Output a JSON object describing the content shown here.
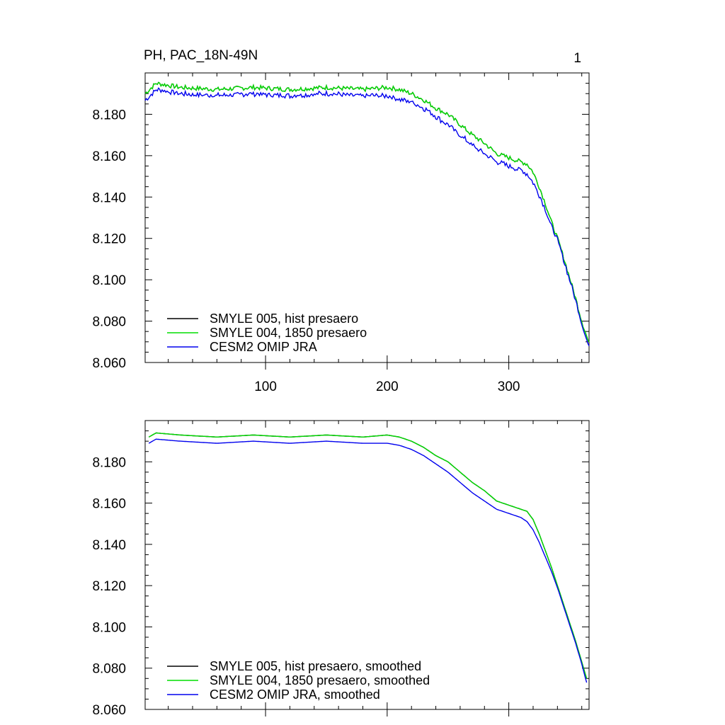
{
  "header": {
    "title": "PH, PAC_18N-49N",
    "corner_label": "1"
  },
  "chart_data": [
    {
      "type": "line",
      "xlim": [
        1,
        366
      ],
      "ylim": [
        8.06,
        8.2
      ],
      "x_ticks": [
        100,
        200,
        300
      ],
      "x_tick_labels": [
        "100",
        "200",
        "300"
      ],
      "y_ticks": [
        8.06,
        8.08,
        8.1,
        8.12,
        8.14,
        8.16,
        8.18
      ],
      "y_tick_labels": [
        "8.060",
        "8.080",
        "8.100",
        "8.120",
        "8.140",
        "8.160",
        "8.180"
      ],
      "legend_position": "bottom-left",
      "noisy": true,
      "series": [
        {
          "name": "SMYLE 005, hist presaero",
          "color": "#000000",
          "x": [
            1,
            10,
            30,
            60,
            90,
            120,
            150,
            180,
            200,
            210,
            220,
            230,
            240,
            250,
            260,
            270,
            280,
            290,
            300,
            310,
            315,
            320,
            325,
            330,
            335,
            340,
            345,
            350,
            355,
            360,
            366
          ],
          "y": [
            8.19,
            8.195,
            8.193,
            8.192,
            8.193,
            8.192,
            8.193,
            8.192,
            8.193,
            8.192,
            8.19,
            8.187,
            8.183,
            8.18,
            8.175,
            8.17,
            8.166,
            8.161,
            8.159,
            8.157,
            8.156,
            8.152,
            8.145,
            8.137,
            8.128,
            8.12,
            8.111,
            8.101,
            8.091,
            8.08,
            8.069
          ]
        },
        {
          "name": "SMYLE 004, 1850 presaero",
          "color": "#00dd00",
          "x": [
            1,
            10,
            30,
            60,
            90,
            120,
            150,
            180,
            200,
            210,
            220,
            230,
            240,
            250,
            260,
            270,
            280,
            290,
            300,
            310,
            315,
            320,
            325,
            330,
            335,
            340,
            345,
            350,
            355,
            360,
            366
          ],
          "y": [
            8.19,
            8.195,
            8.193,
            8.192,
            8.193,
            8.192,
            8.193,
            8.192,
            8.193,
            8.192,
            8.19,
            8.187,
            8.183,
            8.18,
            8.175,
            8.17,
            8.166,
            8.161,
            8.159,
            8.157,
            8.156,
            8.152,
            8.145,
            8.137,
            8.128,
            8.12,
            8.111,
            8.101,
            8.091,
            8.08,
            8.069
          ]
        },
        {
          "name": "CESM2 OMIP JRA",
          "color": "#0000ee",
          "x": [
            1,
            10,
            30,
            60,
            90,
            120,
            150,
            180,
            200,
            210,
            220,
            230,
            240,
            250,
            260,
            270,
            280,
            290,
            300,
            310,
            315,
            320,
            325,
            330,
            335,
            340,
            345,
            350,
            355,
            360,
            366
          ],
          "y": [
            8.187,
            8.192,
            8.19,
            8.189,
            8.19,
            8.189,
            8.19,
            8.189,
            8.189,
            8.187,
            8.186,
            8.183,
            8.179,
            8.175,
            8.17,
            8.165,
            8.161,
            8.157,
            8.155,
            8.153,
            8.151,
            8.147,
            8.141,
            8.134,
            8.126,
            8.119,
            8.11,
            8.1,
            8.09,
            8.079,
            8.067
          ]
        }
      ]
    },
    {
      "type": "line",
      "xlim": [
        1,
        366
      ],
      "ylim": [
        8.06,
        8.2
      ],
      "x_ticks": [
        100,
        200,
        300
      ],
      "x_tick_labels": [],
      "y_ticks": [
        8.06,
        8.08,
        8.1,
        8.12,
        8.14,
        8.16,
        8.18
      ],
      "y_tick_labels": [
        "8.060",
        "8.080",
        "8.100",
        "8.120",
        "8.140",
        "8.160",
        "8.180"
      ],
      "legend_position": "bottom-left",
      "noisy": false,
      "series": [
        {
          "name": "SMYLE 005, hist presaero, smoothed",
          "color": "#000000",
          "x": [
            4,
            10,
            30,
            60,
            90,
            120,
            150,
            180,
            200,
            210,
            220,
            230,
            240,
            250,
            260,
            270,
            280,
            290,
            300,
            310,
            315,
            320,
            325,
            330,
            335,
            340,
            345,
            350,
            355,
            360,
            364
          ],
          "y": [
            8.192,
            8.194,
            8.193,
            8.192,
            8.193,
            8.192,
            8.193,
            8.192,
            8.193,
            8.192,
            8.19,
            8.187,
            8.183,
            8.18,
            8.175,
            8.17,
            8.166,
            8.161,
            8.159,
            8.157,
            8.156,
            8.152,
            8.145,
            8.137,
            8.129,
            8.12,
            8.111,
            8.102,
            8.093,
            8.083,
            8.075
          ]
        },
        {
          "name": "SMYLE 004, 1850 presaero, smoothed",
          "color": "#00dd00",
          "x": [
            4,
            10,
            30,
            60,
            90,
            120,
            150,
            180,
            200,
            210,
            220,
            230,
            240,
            250,
            260,
            270,
            280,
            290,
            300,
            310,
            315,
            320,
            325,
            330,
            335,
            340,
            345,
            350,
            355,
            360,
            364
          ],
          "y": [
            8.192,
            8.194,
            8.193,
            8.192,
            8.193,
            8.192,
            8.193,
            8.192,
            8.193,
            8.192,
            8.19,
            8.187,
            8.183,
            8.18,
            8.175,
            8.17,
            8.166,
            8.161,
            8.159,
            8.157,
            8.156,
            8.152,
            8.145,
            8.137,
            8.129,
            8.12,
            8.111,
            8.102,
            8.093,
            8.083,
            8.075
          ]
        },
        {
          "name": "CESM2 OMIP JRA, smoothed",
          "color": "#0000ee",
          "x": [
            4,
            10,
            30,
            60,
            90,
            120,
            150,
            180,
            200,
            210,
            220,
            230,
            240,
            250,
            260,
            270,
            280,
            290,
            300,
            310,
            315,
            320,
            325,
            330,
            335,
            340,
            345,
            350,
            355,
            360,
            364
          ],
          "y": [
            8.189,
            8.191,
            8.19,
            8.189,
            8.19,
            8.189,
            8.19,
            8.189,
            8.189,
            8.188,
            8.186,
            8.183,
            8.179,
            8.175,
            8.17,
            8.165,
            8.161,
            8.157,
            8.155,
            8.153,
            8.151,
            8.147,
            8.141,
            8.134,
            8.127,
            8.119,
            8.11,
            8.101,
            8.092,
            8.082,
            8.073
          ]
        }
      ]
    }
  ]
}
